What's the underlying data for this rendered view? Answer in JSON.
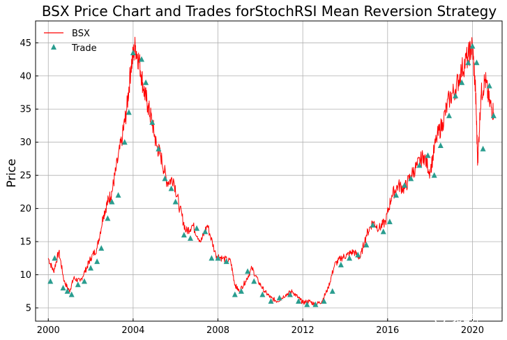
{
  "chart_data": {
    "type": "line",
    "title": "BSX Price Chart and Trades forStochRSI Mean Reversion Strategy",
    "xlabel": "",
    "ylabel": "Price",
    "xlim": [
      1999.4,
      2021.4
    ],
    "ylim": [
      3,
      48.3
    ],
    "x_ticks": [
      2000,
      2004,
      2008,
      2012,
      2016,
      2020
    ],
    "x_tick_labels": [
      "2000",
      "2004",
      "2008",
      "2012",
      "2016",
      "2020"
    ],
    "y_ticks": [
      5,
      10,
      15,
      20,
      25,
      30,
      35,
      40,
      45
    ],
    "y_tick_labels": [
      "5",
      "10",
      "15",
      "20",
      "25",
      "30",
      "35",
      "40",
      "45"
    ],
    "grid": true,
    "legend_position": "top-left",
    "series": [
      {
        "name": "BSX",
        "kind": "line",
        "color": "#ff0000",
        "x": [
          2000.0,
          2000.25,
          2000.5,
          2000.75,
          2001.0,
          2001.2,
          2001.5,
          2001.8,
          2002.0,
          2002.3,
          2002.6,
          2002.8,
          2003.0,
          2003.2,
          2003.5,
          2003.7,
          2003.9,
          2004.1,
          2004.3,
          2004.5,
          2004.7,
          2004.9,
          2005.1,
          2005.3,
          2005.6,
          2005.9,
          2006.2,
          2006.5,
          2006.8,
          2007.2,
          2007.5,
          2007.9,
          2008.2,
          2008.6,
          2008.8,
          2009.0,
          2009.3,
          2009.6,
          2009.9,
          2010.2,
          2010.5,
          2010.8,
          2011.2,
          2011.5,
          2011.8,
          2012.0,
          2012.3,
          2012.6,
          2012.9,
          2013.2,
          2013.5,
          2013.8,
          2014.1,
          2014.4,
          2014.7,
          2015.0,
          2015.3,
          2015.6,
          2015.9,
          2016.2,
          2016.5,
          2016.8,
          2017.1,
          2017.4,
          2017.7,
          2018.0,
          2018.3,
          2018.6,
          2018.9,
          2019.2,
          2019.5,
          2019.8,
          2020.0,
          2020.15,
          2020.25,
          2020.4,
          2020.6,
          2020.8,
          2021.0
        ],
        "y": [
          12.5,
          10.5,
          13.5,
          9.0,
          7.5,
          9.5,
          9.0,
          11.0,
          12.5,
          14.0,
          19.0,
          21.0,
          22.5,
          26.0,
          31.0,
          35.0,
          41.5,
          44.5,
          42.0,
          38.0,
          35.5,
          33.0,
          29.5,
          28.0,
          24.0,
          24.5,
          20.0,
          16.5,
          17.5,
          15.0,
          17.5,
          13.0,
          12.5,
          12.0,
          8.5,
          7.5,
          9.0,
          11.0,
          9.0,
          7.5,
          6.5,
          6.0,
          7.0,
          7.5,
          6.5,
          5.8,
          6.0,
          5.5,
          6.0,
          8.0,
          11.5,
          12.5,
          13.0,
          13.5,
          12.5,
          16.0,
          18.0,
          17.0,
          18.0,
          22.0,
          23.5,
          23.0,
          25.0,
          26.5,
          28.0,
          25.5,
          30.5,
          33.0,
          36.5,
          38.0,
          41.0,
          43.0,
          44.5,
          37.5,
          27.0,
          37.0,
          39.5,
          36.0,
          34.5
        ]
      },
      {
        "name": "Trade",
        "kind": "scatter",
        "marker": "triangle-up",
        "color": "#2a9d8f",
        "x": [
          2000.1,
          2000.3,
          2000.7,
          2000.9,
          2001.1,
          2001.4,
          2001.7,
          2002.0,
          2002.3,
          2002.5,
          2002.8,
          2003.0,
          2003.3,
          2003.6,
          2003.8,
          2004.0,
          2004.4,
          2004.6,
          2004.9,
          2005.2,
          2005.5,
          2005.8,
          2006.0,
          2006.4,
          2006.7,
          2007.0,
          2007.4,
          2007.7,
          2008.0,
          2008.4,
          2008.8,
          2009.1,
          2009.4,
          2009.7,
          2010.1,
          2010.5,
          2010.9,
          2011.4,
          2011.8,
          2012.2,
          2012.6,
          2013.0,
          2013.4,
          2013.8,
          2014.2,
          2014.6,
          2015.0,
          2015.3,
          2015.8,
          2016.1,
          2016.4,
          2016.8,
          2017.1,
          2017.5,
          2017.9,
          2018.2,
          2018.5,
          2018.9,
          2019.2,
          2019.5,
          2019.8,
          2020.0,
          2020.2,
          2020.5,
          2020.8,
          2021.0
        ],
        "y": [
          9.0,
          12.5,
          8.0,
          7.5,
          7.0,
          8.5,
          9.0,
          11.0,
          12.0,
          14.0,
          18.5,
          21.0,
          22.0,
          30.0,
          34.5,
          43.5,
          42.5,
          39.0,
          33.0,
          29.0,
          24.5,
          23.0,
          21.0,
          16.0,
          15.5,
          17.0,
          16.5,
          12.5,
          12.5,
          12.0,
          7.0,
          7.5,
          10.5,
          9.0,
          7.0,
          6.0,
          6.5,
          7.0,
          6.0,
          5.5,
          5.5,
          6.0,
          7.5,
          11.5,
          12.5,
          13.0,
          14.5,
          17.5,
          16.5,
          18.0,
          22.0,
          23.5,
          24.5,
          26.5,
          28.0,
          25.0,
          29.5,
          34.0,
          37.0,
          39.0,
          42.0,
          44.5,
          42.0,
          29.0,
          38.5,
          34.0
        ]
      }
    ]
  },
  "watermark": "宽客邦"
}
